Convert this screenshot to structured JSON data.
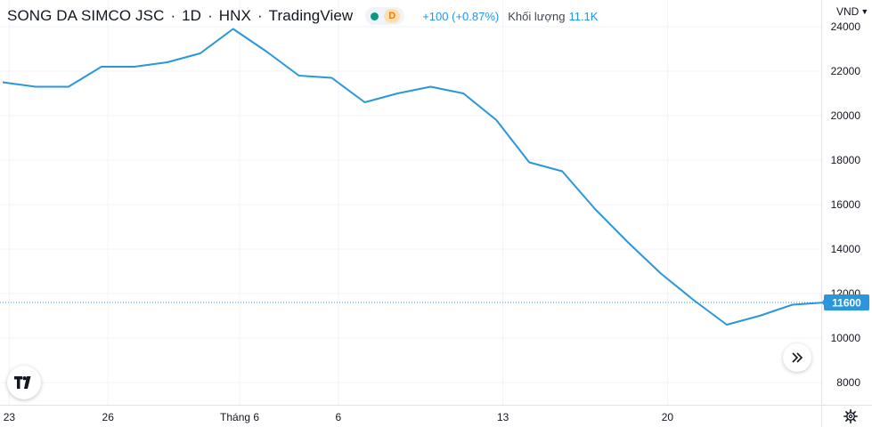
{
  "legend": {
    "symbol": "SONG DA SIMCO JSC",
    "interval": "1D",
    "exchange": "HNX",
    "provider": "TradingView",
    "status_badge": "D",
    "change": "+100 (+0.87%)",
    "volume_label": "Khối lượng",
    "volume_value": "11.1K"
  },
  "price_axis": {
    "unit": "VND"
  },
  "colors": {
    "line": "#2a96dc",
    "accent": "#2196f3",
    "grid": "#f0f3fa",
    "text": "#131722"
  },
  "chart_data": {
    "type": "line",
    "series": [
      {
        "values": [
          21500,
          21300,
          21300,
          22200,
          22200,
          22400,
          22800,
          23900,
          22900,
          21800,
          21700,
          20600,
          21000,
          21300,
          21000,
          19800,
          17900,
          17500,
          15800,
          14300,
          12900,
          11700,
          10600,
          11000,
          11500,
          11600
        ]
      }
    ],
    "x_ticks": [
      {
        "index": 0.2,
        "label": "23"
      },
      {
        "index": 3.2,
        "label": "26"
      },
      {
        "index": 7.2,
        "label": "Tháng 6"
      },
      {
        "index": 10.2,
        "label": "6"
      },
      {
        "index": 15.2,
        "label": "13"
      },
      {
        "index": 20.2,
        "label": "20"
      }
    ],
    "y_ticks": [
      8000,
      10000,
      12000,
      14000,
      16000,
      18000,
      20000,
      22000,
      24000
    ],
    "ylim": [
      7000,
      25200
    ],
    "last_price": 11600,
    "last_price_label": "11600",
    "grid": true
  }
}
